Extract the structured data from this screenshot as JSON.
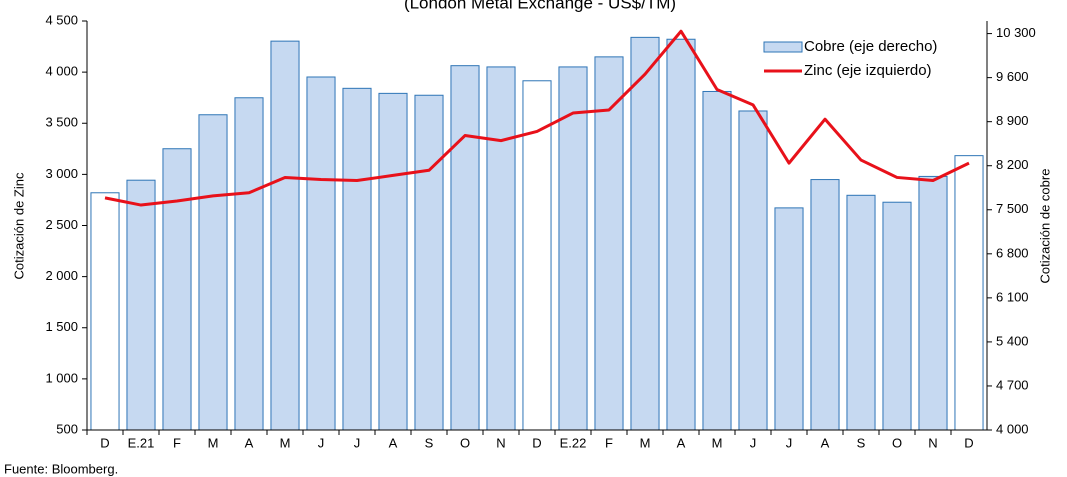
{
  "chart_data": {
    "type": "bar_line",
    "subtitle": "(London Metal Exchange - US$/TM)",
    "ylabel": "Cotización de Zinc",
    "y2label": "Cotización de cobre",
    "source": "Fuente: Bloomberg.",
    "categories": [
      "D",
      "E.21",
      "F",
      "M",
      "A",
      "M",
      "J",
      "J",
      "A",
      "S",
      "O",
      "N",
      "D",
      "E.22",
      "F",
      "M",
      "A",
      "M",
      "J",
      "J",
      "A",
      "S",
      "O",
      "N",
      "D"
    ],
    "series": [
      {
        "name": "Cobre (eje derecho)",
        "type": "bar",
        "axis": "y2",
        "color": "#c6d9f1",
        "edge_color": "#2e75b6",
        "colors": [
          "#ffffff",
          "#c6d9f1",
          "#c6d9f1",
          "#c6d9f1",
          "#c6d9f1",
          "#c6d9f1",
          "#c6d9f1",
          "#c6d9f1",
          "#c6d9f1",
          "#c6d9f1",
          "#c6d9f1",
          "#c6d9f1",
          "#ffffff",
          "#c6d9f1",
          "#c6d9f1",
          "#c6d9f1",
          "#c6d9f1",
          "#c6d9f1",
          "#c6d9f1",
          "#c6d9f1",
          "#c6d9f1",
          "#c6d9f1",
          "#c6d9f1",
          "#c6d9f1",
          "#ffffff"
        ],
        "values": [
          7770,
          7970,
          8470,
          9010,
          9280,
          10180,
          9610,
          9430,
          9350,
          9320,
          9790,
          9770,
          9550,
          9770,
          9930,
          10240,
          10210,
          9380,
          9070,
          7530,
          7980,
          7730,
          7620,
          8030,
          8360
        ]
      },
      {
        "name": "Zinc (eje izquierdo)",
        "type": "line",
        "axis": "y",
        "color": "#e8111a",
        "values": [
          2770,
          2700,
          2740,
          2790,
          2820,
          2970,
          2950,
          2940,
          2990,
          3040,
          3380,
          3330,
          3420,
          3600,
          3630,
          3980,
          4400,
          3830,
          3680,
          3110,
          3540,
          3140,
          2970,
          2940,
          3110
        ]
      }
    ],
    "ylim": [
      500,
      4500
    ],
    "yticks": [
      500,
      {
        "value": 1000,
        "label": "1 000"
      },
      {
        "value": 1500,
        "label": "1 500"
      },
      {
        "value": 2000,
        "label": "2 000"
      },
      {
        "value": 2500,
        "label": "2 500"
      },
      {
        "value": 3000,
        "label": "3 000"
      },
      {
        "value": 3500,
        "label": "3 500"
      },
      {
        "value": 4000,
        "label": "4 000"
      },
      {
        "value": 4500,
        "label": "4 500"
      }
    ],
    "y2lim": [
      4000,
      10500
    ],
    "y2ticks": [
      {
        "value": 4000,
        "label": "4 000"
      },
      {
        "value": 4700,
        "label": "4 700"
      },
      {
        "value": 5400,
        "label": "5 400"
      },
      {
        "value": 6100,
        "label": "6 100"
      },
      {
        "value": 6800,
        "label": "6 800"
      },
      {
        "value": 7500,
        "label": "7 500"
      },
      {
        "value": 8200,
        "label": "8 200"
      },
      {
        "value": 8900,
        "label": "8 900"
      },
      {
        "value": 9600,
        "label": "9 600"
      },
      {
        "value": 10300,
        "label": "10 300"
      }
    ],
    "legend": "upper right"
  }
}
